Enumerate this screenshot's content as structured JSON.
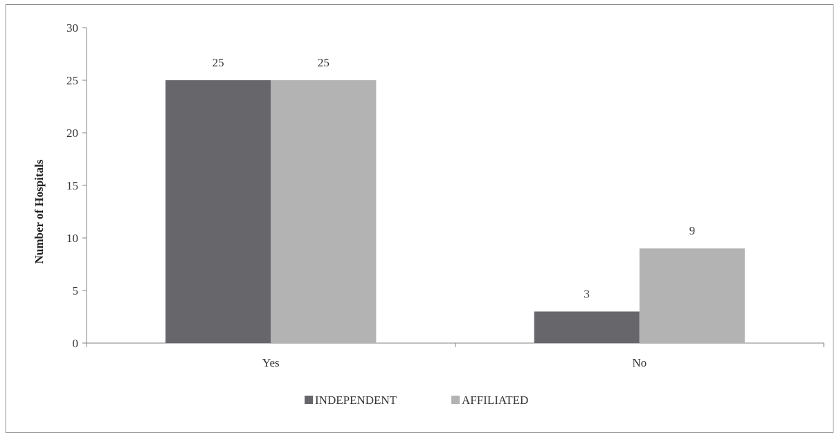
{
  "chart_data": {
    "type": "bar",
    "categories": [
      "Yes",
      "No"
    ],
    "series": [
      {
        "name": "INDEPENDENT",
        "values": [
          25,
          3
        ],
        "color": "#67666b"
      },
      {
        "name": "AFFILIATED",
        "values": [
          25,
          9
        ],
        "color": "#b3b3b3"
      }
    ],
    "ylabel": "Number of Hospitals",
    "xlabel": "",
    "ylim": [
      0,
      30
    ],
    "yticks": [
      0,
      5,
      10,
      15,
      20,
      25,
      30
    ],
    "grid": false,
    "legend_position": "bottom"
  }
}
